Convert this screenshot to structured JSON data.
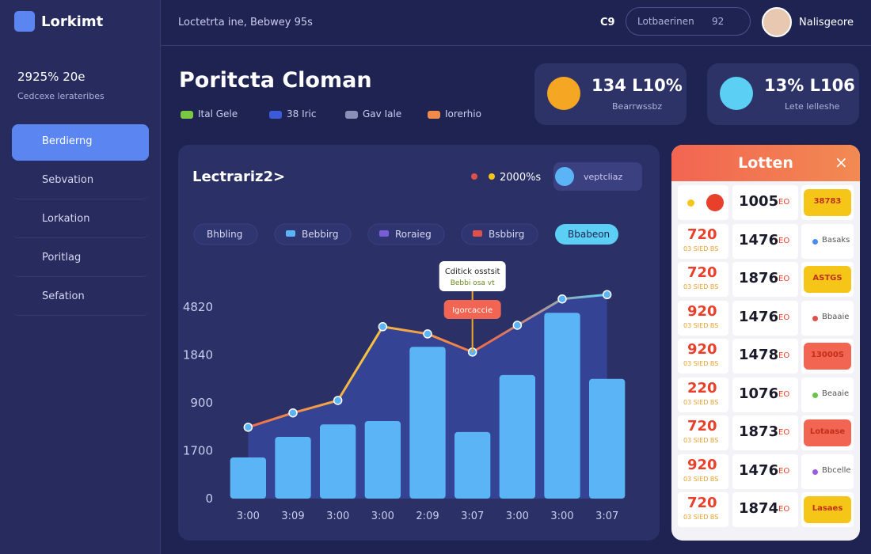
{
  "sidebar": {
    "logo": "Lorkimt",
    "stat": "2925% 20e",
    "stat_caption": "Cedcexe lerateribes",
    "nav": [
      "Berdierng",
      "Sebvation",
      "Lorkation",
      "Poritlag",
      "Sefation"
    ],
    "active": 0
  },
  "topbar": {
    "breadcrumb": "Loctetrta ine, Bebwey 95s",
    "icon_text": "C9",
    "search": "Lotbaerinen",
    "search_badge": "92",
    "user": "Nalisgeore"
  },
  "header": {
    "title": "Poritcta Cloman",
    "legend": [
      {
        "name": "Ital Gele",
        "color": "#7ac943"
      },
      {
        "name": "38 Iric",
        "color": "#3b5bd9"
      },
      {
        "name": "Gav Iale",
        "color": "#8a8fb8"
      },
      {
        "name": "Iorerhio",
        "color": "#f08a4b"
      }
    ]
  },
  "stats": [
    {
      "value": "134 L10%",
      "caption": "Bearrwssbz",
      "color": "#f5a623"
    },
    {
      "value": "13% L106",
      "caption": "Lete lelleshe",
      "color": "#5ccff5"
    }
  ],
  "chart_data": {
    "type": "combo",
    "title": "Lectrariz2>",
    "legend": "2000%s",
    "toggle": "veptcliaz",
    "filters": [
      "Bhbling",
      "Bebbirg",
      "Roraieg",
      "Bsbbirg",
      "Bbabeon"
    ],
    "filter_colors": [
      null,
      "#5ab4f5",
      "#7a5cd6",
      "#e0504a",
      null
    ],
    "active_filter": 4,
    "annotations": [
      "Cditick osstsit",
      "Bebbi osa vt",
      "Igorcaccie"
    ],
    "categories": [
      "3:00",
      "3:09",
      "3:00",
      "3:00",
      "2:09",
      "3:07",
      "3:00",
      "3:00",
      "3:07"
    ],
    "series": [
      {
        "type": "bar",
        "color": "#5ab4f5",
        "values": [
          0.86,
          1.29,
          1.55,
          1.62,
          3.17,
          1.39,
          2.58,
          3.88,
          2.5
        ]
      },
      {
        "type": "line",
        "colors": [
          "#ef6a4a",
          "#f5c542",
          "#ef6a4a",
          "#5ccff5"
        ],
        "values": [
          1.49,
          1.79,
          2.05,
          3.59,
          3.44,
          3.06,
          3.62,
          4.17,
          4.26
        ]
      }
    ],
    "ylim": [
      0,
      4.5
    ],
    "yticks": [
      0,
      {
        "value": 1,
        "label": "1700"
      },
      {
        "value": 2,
        "label": "900"
      },
      {
        "value": 3,
        "label": "1840"
      },
      {
        "value": 4,
        "label": "4820"
      }
    ],
    "grid": false
  },
  "lottery": {
    "title": "Lotten",
    "rows": [
      {
        "value": "1005",
        "unit": "EO",
        "badge": "38783",
        "badge_style": "fill",
        "color": "#f5c518"
      },
      {
        "left": "720",
        "left_sub": "03 SIED BS",
        "value": "1476",
        "unit": "EO",
        "badge": "Basaks",
        "badge_style": "dot",
        "color": "#4a8cf0"
      },
      {
        "left": "720",
        "left_sub": "03 SIED BS",
        "value": "1876",
        "unit": "EO",
        "badge": "ASTGS",
        "badge_style": "fill",
        "color": "#f5c518"
      },
      {
        "left": "920",
        "left_sub": "03 SIED BS",
        "value": "1476",
        "unit": "EO",
        "badge": "Bbaaie",
        "badge_style": "dot",
        "color": "#e0504a"
      },
      {
        "left": "920",
        "left_sub": "03 SIED BS",
        "value": "1478",
        "unit": "EO",
        "badge": "13000S",
        "badge_style": "fill",
        "color": "#f26552"
      },
      {
        "left": "220",
        "left_sub": "03 SIED BS",
        "value": "1076",
        "unit": "EO",
        "badge": "Beaaie",
        "badge_style": "dot",
        "color": "#6cc24a"
      },
      {
        "left": "720",
        "left_sub": "03 SIED BS",
        "value": "1873",
        "unit": "EO",
        "badge": "Lotaase",
        "badge_style": "fill",
        "color": "#f26552"
      },
      {
        "left": "920",
        "left_sub": "03 SIED BS",
        "value": "1476",
        "unit": "EO",
        "badge": "Bbcelle",
        "badge_style": "dot",
        "color": "#9a5ce0"
      },
      {
        "left": "720",
        "left_sub": "03 SIED BS",
        "value": "1874",
        "unit": "EO",
        "badge": "Lasaes",
        "badge_style": "fill",
        "color": "#f5c518"
      }
    ]
  }
}
